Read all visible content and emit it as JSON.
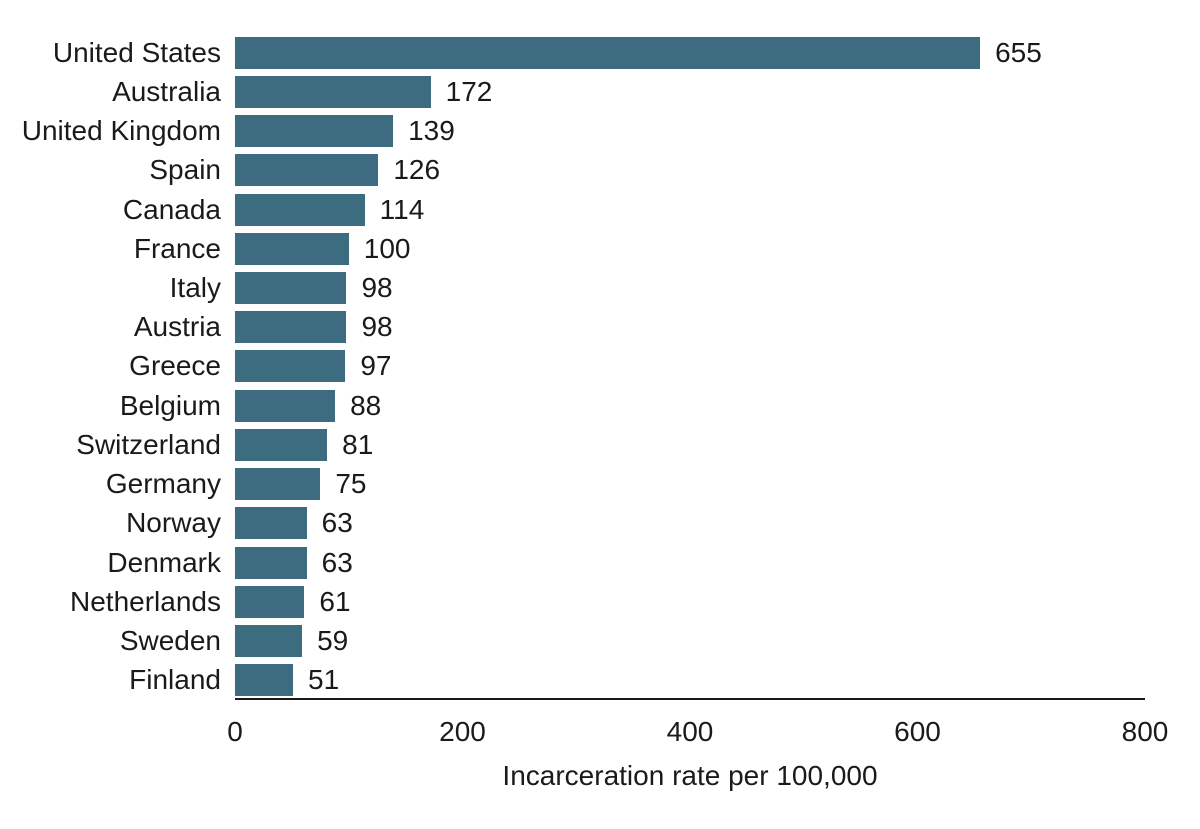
{
  "chart_data": {
    "type": "bar",
    "orientation": "horizontal",
    "title": "",
    "xlabel": "Incarceration rate per 100,000",
    "ylabel": "",
    "categories": [
      "United States",
      "Australia",
      "United Kingdom",
      "Spain",
      "Canada",
      "France",
      "Italy",
      "Austria",
      "Greece",
      "Belgium",
      "Switzerland",
      "Germany",
      "Norway",
      "Denmark",
      "Netherlands",
      "Sweden",
      "Finland"
    ],
    "values": [
      655,
      172,
      139,
      126,
      114,
      100,
      98,
      98,
      97,
      88,
      81,
      75,
      63,
      63,
      61,
      59,
      51
    ],
    "xlim": [
      0,
      800
    ],
    "xticks": [
      0,
      200,
      400,
      600,
      800
    ],
    "value_labels": true,
    "grid": false,
    "legend": false,
    "bar_color": "#3d6c80",
    "text_color": "#1a1a1a",
    "axis_line_color": "#1a1a1a"
  }
}
